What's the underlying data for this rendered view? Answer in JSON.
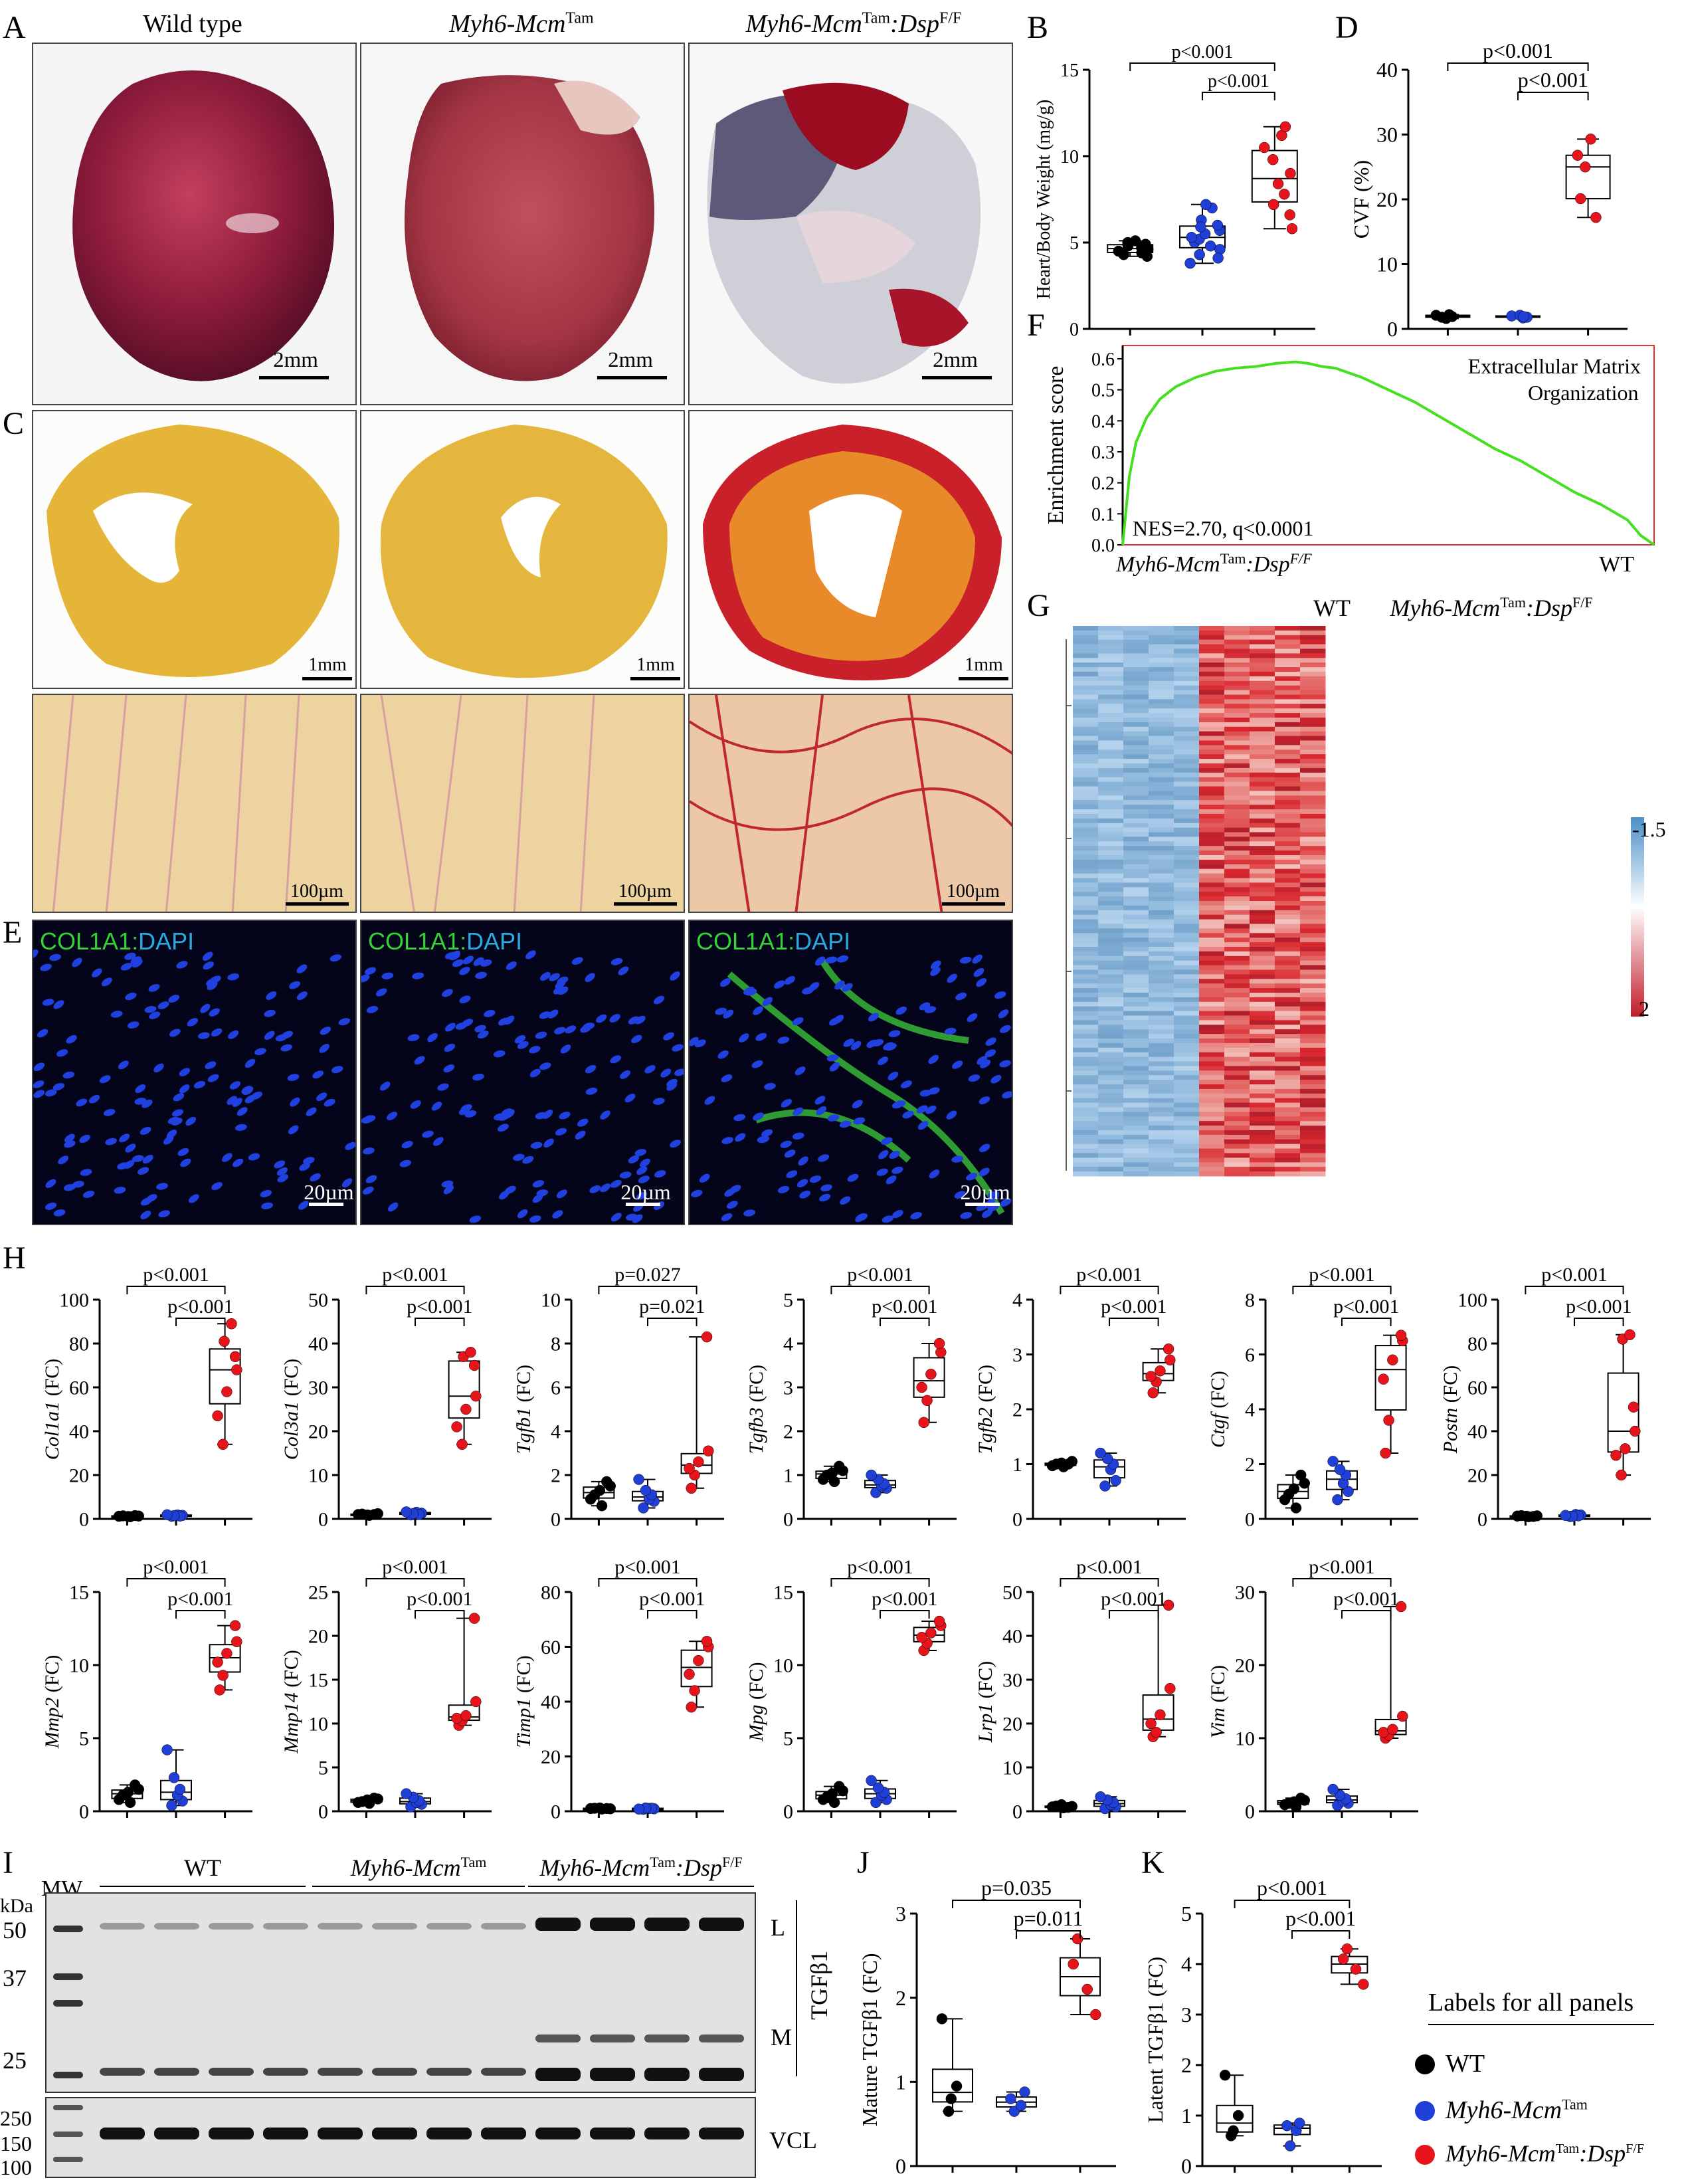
{
  "figure": {
    "panel_labels": [
      "A",
      "B",
      "C",
      "D",
      "E",
      "F",
      "G",
      "H",
      "I",
      "J",
      "K"
    ],
    "genotypes": {
      "wt": "Wild type",
      "mcm_prefix": "Myh6-Mcm",
      "mcm_sup": "Tam",
      "dsp_suffix": ":Dsp",
      "dsp_sup": "F/F",
      "wt_short": "WT"
    },
    "colors": {
      "wt": "#000000",
      "mcm": "#1f3fd6",
      "dsp": "#e8141c"
    }
  },
  "panelA": {
    "scalebars": [
      "2mm",
      "2mm",
      "2mm"
    ]
  },
  "panelC": {
    "scalebars_top": [
      "1mm",
      "1mm",
      "1mm"
    ],
    "scalebars_bottom": [
      "100µm",
      "100µm",
      "100µm"
    ]
  },
  "panelE": {
    "stain_green": "COL1A1",
    "stain_sep": ":",
    "stain_blue": "DAPI",
    "scalebars": [
      "20µm",
      "20µm",
      "20µm"
    ]
  },
  "panelF": {
    "ylabel": "Enrichment score",
    "title_line1": "Extracellular Matrix",
    "title_line2": "Organization",
    "annotation": "NES=2.70, q<0.0001",
    "left_label": "Myh6-Mcm",
    "right_label": "WT",
    "yticks": [
      "0.0",
      "0.1",
      "0.2",
      "0.3",
      "0.4",
      "0.5",
      "0.6"
    ]
  },
  "panelG": {
    "group_wt": "WT",
    "scale_top": "-1.5",
    "scale_bottom": "2"
  },
  "panelI": {
    "mw_label": "MW",
    "kda_label": "kDa",
    "markers": [
      "50",
      "37",
      "25",
      "250",
      "150",
      "100"
    ],
    "group_wt": "WT",
    "band_L": "L",
    "band_M": "M",
    "tgf": "TGFβ1",
    "vcl": "VCL"
  },
  "legend": {
    "title": "Labels for all panels",
    "wt": "WT"
  },
  "chart_data": [
    {
      "panel": "B",
      "type": "box",
      "ylabel": "Heart/Body Weight (mg/g)",
      "ylim": [
        0,
        15
      ],
      "yticks": [
        0,
        5,
        10,
        15
      ],
      "pvalues": [
        "p<0.001",
        "p<0.001"
      ],
      "series": [
        {
          "values": [
            4.2,
            4.4,
            4.5,
            4.6,
            4.7,
            4.8,
            4.9,
            5.0,
            5.1,
            4.3
          ]
        },
        {
          "values": [
            3.8,
            4.3,
            4.6,
            4.8,
            5.0,
            5.2,
            5.3,
            5.5,
            5.7,
            6.0,
            6.3,
            7.0,
            7.2,
            4.1,
            5.9
          ]
        },
        {
          "values": [
            5.8,
            6.6,
            7.2,
            7.8,
            8.4,
            9.0,
            9.8,
            10.5,
            11.2,
            11.7
          ]
        }
      ]
    },
    {
      "panel": "D",
      "type": "box",
      "ylabel": "CVF (%)",
      "ylim": [
        0,
        40
      ],
      "yticks": [
        0,
        10,
        20,
        30,
        40
      ],
      "pvalues": [
        "p<0.001",
        "p<0.001"
      ],
      "series": [
        {
          "values": [
            1.6,
            1.9,
            2.1,
            1.8,
            2.2
          ]
        },
        {
          "values": [
            1.7,
            2.0,
            1.8,
            2.1,
            1.9
          ]
        },
        {
          "values": [
            17.2,
            20.1,
            25.0,
            26.8,
            29.3
          ]
        }
      ]
    },
    {
      "panel": "F",
      "type": "line",
      "x": [
        0,
        5,
        10,
        18,
        28,
        40,
        55,
        70,
        85,
        100,
        115,
        130,
        140,
        150,
        160,
        180,
        200,
        220,
        240,
        260,
        280,
        300,
        320,
        340,
        360,
        380,
        390,
        400
      ],
      "y": [
        0.0,
        0.22,
        0.33,
        0.41,
        0.47,
        0.51,
        0.54,
        0.56,
        0.57,
        0.575,
        0.585,
        0.59,
        0.585,
        0.575,
        0.57,
        0.54,
        0.5,
        0.46,
        0.41,
        0.36,
        0.31,
        0.27,
        0.22,
        0.17,
        0.13,
        0.08,
        0.03,
        0.0
      ],
      "ylim": [
        0,
        0.6
      ]
    },
    {
      "panel": "H",
      "type": "box",
      "charts": [
        {
          "gene": "Col1a1",
          "ylim": [
            0,
            100
          ],
          "yticks": [
            0,
            20,
            40,
            60,
            80,
            100
          ],
          "pvalues": [
            "p<0.001",
            "p<0.001"
          ],
          "series": [
            [
              1,
              1.2,
              1.4,
              1.1,
              1.3,
              1.5
            ],
            [
              1.2,
              1.6,
              1.8,
              1.3,
              1.5,
              1.9
            ],
            [
              34,
              47,
              58,
              68,
              74,
              81,
              89
            ]
          ]
        },
        {
          "gene": "Col3a1",
          "ylim": [
            0,
            50
          ],
          "yticks": [
            0,
            10,
            20,
            30,
            40,
            50
          ],
          "pvalues": [
            "p<0.001",
            "p<0.001"
          ],
          "series": [
            [
              0.8,
              1.0,
              1.1,
              0.9,
              1.2,
              1.0
            ],
            [
              0.9,
              1.3,
              1.5,
              1.0,
              1.2,
              1.6
            ],
            [
              17,
              21,
              25,
              28,
              35,
              37,
              38
            ]
          ]
        },
        {
          "gene": "Tgfb1",
          "ylim": [
            0,
            10
          ],
          "yticks": [
            0,
            2,
            4,
            6,
            8,
            10
          ],
          "pvalues": [
            "p=0.027",
            "p=0.021"
          ],
          "series": [
            [
              0.6,
              0.9,
              1.1,
              1.3,
              1.5,
              1.7
            ],
            [
              0.5,
              0.8,
              0.9,
              1.1,
              1.3,
              1.8
            ],
            [
              1.4,
              2.0,
              2.3,
              2.6,
              3.1,
              8.3
            ]
          ]
        },
        {
          "gene": "Tgfb3",
          "ylim": [
            0,
            5
          ],
          "yticks": [
            0,
            1,
            2,
            3,
            4,
            5
          ],
          "pvalues": [
            "p<0.001",
            "p<0.001"
          ],
          "series": [
            [
              0.85,
              0.9,
              1.0,
              1.05,
              1.1,
              1.2
            ],
            [
              0.6,
              0.7,
              0.75,
              0.8,
              0.9,
              1.0
            ],
            [
              2.2,
              2.7,
              3.0,
              3.3,
              3.8,
              4.0
            ]
          ]
        },
        {
          "gene": "Tgfb2",
          "ylim": [
            0,
            4
          ],
          "yticks": [
            0,
            1,
            2,
            3,
            4
          ],
          "pvalues": [
            "p<0.001",
            "p<0.001"
          ],
          "series": [
            [
              0.95,
              0.97,
              1.0,
              1.02,
              1.05,
              1.0
            ],
            [
              0.6,
              0.7,
              0.9,
              1.0,
              1.1,
              1.2
            ],
            [
              2.3,
              2.5,
              2.6,
              2.7,
              2.9,
              3.1
            ]
          ]
        },
        {
          "gene": "Ctgf",
          "ylim": [
            0,
            8
          ],
          "yticks": [
            0,
            2,
            4,
            6,
            8
          ],
          "pvalues": [
            "p<0.001",
            "p<0.001"
          ],
          "series": [
            [
              0.4,
              0.7,
              0.9,
              1.1,
              1.3,
              1.6
            ],
            [
              0.7,
              1.0,
              1.3,
              1.6,
              1.8,
              2.1
            ],
            [
              2.4,
              3.6,
              5.1,
              5.8,
              6.5,
              6.7
            ]
          ]
        },
        {
          "gene": "Postn",
          "ylim": [
            0,
            100
          ],
          "yticks": [
            0,
            20,
            40,
            60,
            80,
            100
          ],
          "pvalues": [
            "p<0.001",
            "p<0.001"
          ],
          "series": [
            [
              1,
              1.3,
              1.5,
              1.2,
              1.4,
              1.1
            ],
            [
              1.1,
              1.8,
              2.0,
              1.4,
              1.2,
              1.6
            ],
            [
              20,
              29,
              32,
              40,
              51,
              82,
              84
            ]
          ]
        },
        {
          "gene": "Mmp2",
          "ylim": [
            0,
            15
          ],
          "yticks": [
            0,
            5,
            10,
            15
          ],
          "pvalues": [
            "p<0.001",
            "p<0.001"
          ],
          "series": [
            [
              0.6,
              0.8,
              1.1,
              1.3,
              1.5,
              1.8
            ],
            [
              0.4,
              0.7,
              1.1,
              1.5,
              2.3,
              4.2
            ],
            [
              8.3,
              9.3,
              10.2,
              10.8,
              11.6,
              12.7
            ]
          ]
        },
        {
          "gene": "Mmp14",
          "ylim": [
            0,
            25
          ],
          "yticks": [
            0,
            5,
            10,
            15,
            20,
            25
          ],
          "pvalues": [
            "p<0.001",
            "p<0.001"
          ],
          "series": [
            [
              0.9,
              1.0,
              1.1,
              1.3,
              1.4,
              1.5
            ],
            [
              0.5,
              0.8,
              1.0,
              1.2,
              1.6,
              2.0
            ],
            [
              9.8,
              10.3,
              10.6,
              10.9,
              12.5,
              22.0
            ]
          ]
        },
        {
          "gene": "Timp1",
          "ylim": [
            0,
            80
          ],
          "yticks": [
            0,
            20,
            40,
            60,
            80
          ],
          "pvalues": [
            "p<0.001",
            "p<0.001"
          ],
          "series": [
            [
              0.8,
              1.0,
              1.1,
              1.2,
              0.9,
              1.0
            ],
            [
              0.7,
              0.9,
              1.0,
              1.1,
              1.2,
              0.8
            ],
            [
              38,
              44,
              50,
              55,
              60,
              62
            ]
          ]
        },
        {
          "gene": "Mpg",
          "ylim": [
            0,
            15
          ],
          "yticks": [
            0,
            5,
            10,
            15
          ],
          "pvalues": [
            "p<0.001",
            "p<0.001"
          ],
          "series": [
            [
              0.6,
              0.8,
              1.0,
              1.2,
              1.4,
              1.7
            ],
            [
              0.6,
              0.8,
              1.1,
              1.3,
              1.6,
              2.1
            ],
            [
              11.0,
              11.5,
              11.9,
              12.2,
              12.7,
              13.0
            ]
          ]
        },
        {
          "gene": "Lrp1",
          "ylim": [
            0,
            50
          ],
          "yticks": [
            0,
            10,
            20,
            30,
            40,
            50
          ],
          "pvalues": [
            "p<0.001",
            "p<0.001"
          ],
          "series": [
            [
              0.8,
              1.0,
              1.2,
              1.5,
              1.1,
              0.9
            ],
            [
              0.6,
              1.0,
              1.5,
              2.0,
              2.6,
              3.3
            ],
            [
              17,
              18,
              20,
              22,
              28,
              47
            ]
          ]
        },
        {
          "gene": "Vim",
          "ylim": [
            0,
            30
          ],
          "yticks": [
            0,
            10,
            20,
            30
          ],
          "pvalues": [
            "p<0.001",
            "p<0.001"
          ],
          "series": [
            [
              0.6,
              0.9,
              1.1,
              1.3,
              1.5,
              1.8
            ],
            [
              0.8,
              1.1,
              1.4,
              1.7,
              2.2,
              3.0
            ],
            [
              10,
              10.4,
              10.8,
              11.2,
              13,
              28
            ]
          ]
        }
      ]
    },
    {
      "panel": "J",
      "type": "box",
      "ylabel": "Mature TGFβ1 (FC)",
      "ylim": [
        0,
        3
      ],
      "yticks": [
        0,
        1,
        2,
        3
      ],
      "pvalues": [
        "p=0.035",
        "p=0.011"
      ],
      "series": [
        {
          "values": [
            0.65,
            0.8,
            0.95,
            1.75
          ]
        },
        {
          "values": [
            0.65,
            0.72,
            0.8,
            0.88
          ]
        },
        {
          "values": [
            1.8,
            2.1,
            2.4,
            2.7
          ]
        }
      ]
    },
    {
      "panel": "K",
      "type": "box",
      "ylabel": "Latent TGFβ1 (FC)",
      "ylim": [
        0,
        5
      ],
      "yticks": [
        0,
        1,
        2,
        3,
        4,
        5
      ],
      "pvalues": [
        "p<0.001",
        "p<0.001"
      ],
      "series": [
        {
          "values": [
            0.6,
            0.7,
            1.0,
            1.8
          ]
        },
        {
          "values": [
            0.4,
            0.7,
            0.8,
            0.85
          ]
        },
        {
          "values": [
            3.6,
            3.9,
            4.1,
            4.3
          ]
        }
      ]
    }
  ]
}
